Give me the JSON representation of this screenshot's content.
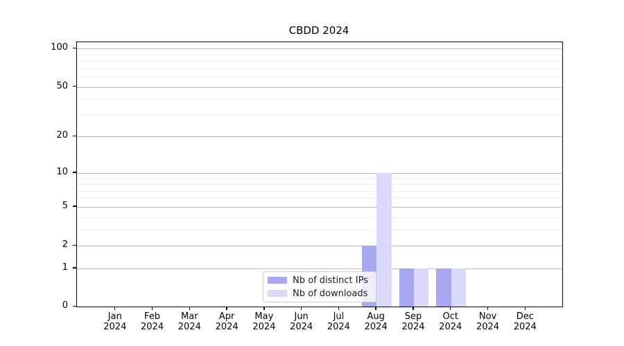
{
  "chart_data": {
    "type": "bar",
    "title": "CBDD 2024",
    "categories": [
      "Jan",
      "Feb",
      "Mar",
      "Apr",
      "May",
      "Jun",
      "Jul",
      "Aug",
      "Sep",
      "Oct",
      "Nov",
      "Dec"
    ],
    "category_year": "2024",
    "series": [
      {
        "name": "Nb of distinct IPs",
        "color": "#a8a8f0",
        "values": [
          0,
          0,
          0,
          0,
          0,
          0,
          0,
          2,
          1,
          1,
          0,
          0
        ]
      },
      {
        "name": "Nb of downloads",
        "color": "#dadaf8",
        "values": [
          0,
          0,
          0,
          0,
          0,
          0,
          0,
          10,
          1,
          1,
          0,
          0
        ]
      }
    ],
    "xlabel": "",
    "ylabel": "",
    "yscale": "log1p",
    "ylim": [
      0,
      112
    ],
    "yticks": [
      0,
      1,
      2,
      5,
      10,
      20,
      50,
      100
    ],
    "yticks_minor": [
      3,
      4,
      6,
      7,
      8,
      9,
      30,
      40,
      60,
      70,
      80,
      90
    ],
    "grid": "horizontal",
    "legend_position": "lower-center"
  }
}
